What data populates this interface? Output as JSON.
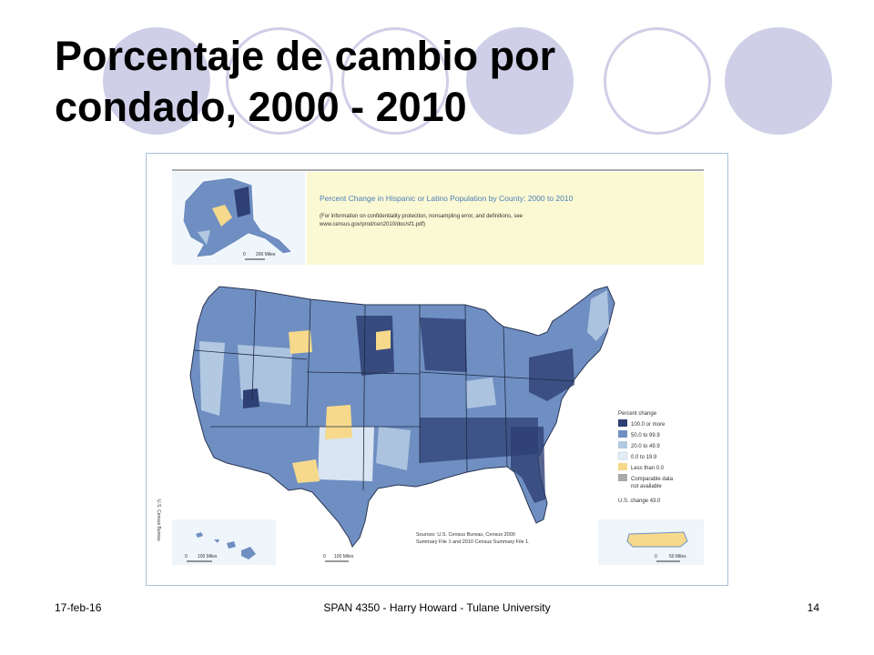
{
  "slide": {
    "title": "Porcentaje de cambio por condado, 2000 - 2010",
    "footer_date": "17-feb-16",
    "footer_center": "SPAN 4350 - Harry Howard - Tulane University",
    "page_number": "14"
  },
  "map": {
    "title": "Percent Change in Hispanic or Latino Population by County: 2000 to 2010",
    "note_line1": "(For information on confidentiality protection, nonsampling error, and definitions, see",
    "note_line2": "www.census.gov/prod/cen2010/doc/sf1.pdf)",
    "legend_title": "Percent change",
    "legend_items": [
      {
        "label": "100.0 or more",
        "color": "#2e3f73"
      },
      {
        "label": "50.0 to 99.9",
        "color": "#6f8fc2"
      },
      {
        "label": "20.0 to 49.9",
        "color": "#b3c9e2"
      },
      {
        "label": "0.0 to 19.9",
        "color": "#e4eef7"
      },
      {
        "label": "Less than 0.0",
        "color": "#f7d98b"
      },
      {
        "label": "Comparable data not available",
        "color": "#a9a9a9"
      }
    ],
    "us_change": "U.S. change 43.0",
    "sources_line1": "Sources: U.S. Census Bureau, Census 2000",
    "sources_line2": "Summary File 1 and 2010 Census Summary File 1.",
    "credit": "U.S. Census Bureau",
    "scale_alaska": "200 Miles",
    "scale_hawaii": "100 Miles",
    "scale_conus": "100 Miles",
    "scale_pr": "50 Miles",
    "scale_zero": "0"
  },
  "colors": {
    "decor_circle": "#cfcfe8",
    "title_panel": "#fbf8d4",
    "inset_bg": "#eef5fb",
    "frame": "#a9c2db"
  }
}
